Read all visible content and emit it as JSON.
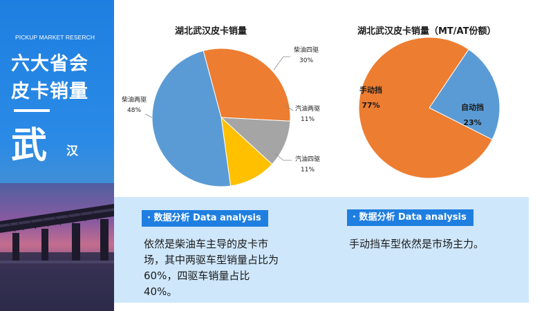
{
  "banner": {
    "subtitle": "PICKUP MARKET RESERCH",
    "title_line1": "六大省会",
    "title_line2": "皮卡销量",
    "city_big": "武",
    "city_small": "汉"
  },
  "chart_data": [
    {
      "type": "pie",
      "title": "湖北武汉皮卡销量",
      "labels": [
        "柴油四驱",
        "汽油两驱",
        "汽油四驱",
        "柴油两驱"
      ],
      "values": [
        30,
        11,
        11,
        48
      ],
      "display": [
        "30%",
        "11%",
        "11%",
        "48%"
      ],
      "colors": [
        "#ed7d31",
        "#a5a5a5",
        "#ffc000",
        "#5b9bd5"
      ]
    },
    {
      "type": "pie",
      "title": "湖北武汉皮卡销量（MT/AT份额）",
      "labels": [
        "自动挡",
        "手动挡"
      ],
      "values": [
        23,
        77
      ],
      "display": [
        "23%",
        "77%"
      ],
      "colors": [
        "#5b9bd5",
        "#ed7d31"
      ]
    }
  ],
  "analysis": {
    "left": {
      "heading": "· 数据分析 Data analysis",
      "text": "依然是柴油车主导的皮卡市场，其中两驱车型销量占比为60%，四驱车销量占比40%。"
    },
    "right": {
      "heading": "· 数据分析 Data analysis",
      "text": "手动挡车型依然是市场主力。"
    }
  }
}
